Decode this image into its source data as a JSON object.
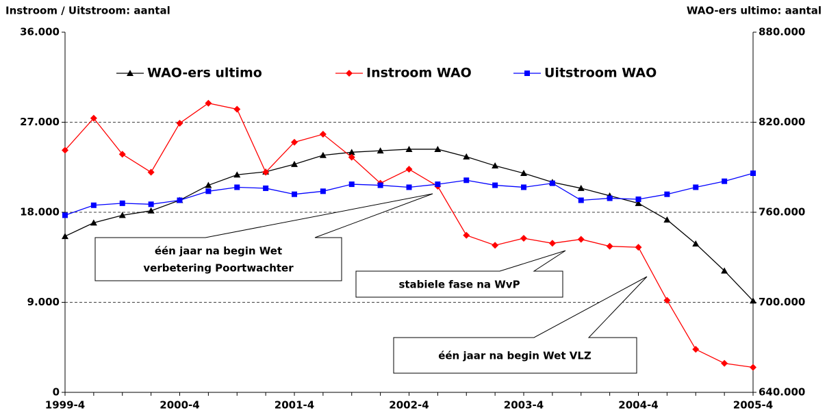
{
  "chart_data": {
    "type": "line",
    "y_title": "Instroom / Uitstroom: aantal",
    "y2_title": "WAO-ers ultimo: aantal",
    "categories": [
      "1999-4",
      null,
      null,
      null,
      "2000-4",
      null,
      null,
      null,
      "2001-4",
      null,
      null,
      null,
      "2002-4",
      null,
      null,
      null,
      "2003-4",
      null,
      null,
      null,
      "2004-4",
      null,
      null,
      null,
      "2005-4"
    ],
    "series": [
      {
        "name": "WAO-ers ultimo",
        "color": "#000000",
        "marker": "triangle",
        "axis": "y2",
        "values": [
          744000,
          753000,
          758000,
          761000,
          768000,
          778000,
          785000,
          787000,
          792000,
          798000,
          800000,
          801000,
          802000,
          802000,
          797000,
          791000,
          786000,
          780000,
          776000,
          771000,
          766000,
          755000,
          739000,
          721000,
          701000
        ]
      },
      {
        "name": "Instroom WAO",
        "color": "#ff0000",
        "marker": "diamond",
        "values": [
          24200,
          27400,
          23800,
          22000,
          26900,
          28900,
          28300,
          22000,
          25000,
          25800,
          23500,
          20900,
          22300,
          20600,
          15700,
          14700,
          15400,
          14900,
          15300,
          14600,
          14500,
          9200,
          4300,
          2900,
          2500
        ]
      },
      {
        "name": "Uitstroom WAO",
        "color": "#0000ff",
        "marker": "square",
        "values": [
          17700,
          18700,
          18900,
          18800,
          19200,
          20100,
          20500,
          20400,
          19800,
          20100,
          20800,
          20700,
          20500,
          20800,
          21200,
          20700,
          20500,
          20900,
          19200,
          19400,
          19300,
          19800,
          20500,
          21100,
          21900
        ]
      }
    ],
    "ylim": [
      0,
      36000
    ],
    "yticks": [
      0,
      {
        "value": 9000,
        "label": "9.000"
      },
      {
        "value": 18000,
        "label": "18.000"
      },
      {
        "value": 27000,
        "label": "27.000"
      },
      {
        "value": 36000,
        "label": "36.000"
      }
    ],
    "y2lim": [
      640000,
      880000
    ],
    "y2ticks": [
      {
        "value": 640000,
        "label": "640.000"
      },
      {
        "value": 700000,
        "label": "700.000"
      },
      {
        "value": 760000,
        "label": "760.000"
      },
      {
        "value": 820000,
        "label": "820.000"
      },
      {
        "value": 880000,
        "label": "880.000"
      }
    ],
    "grid": true,
    "legend": "top",
    "annotations": [
      {
        "lines": [
          "één jaar na begin Wet",
          "verbetering Poortwachter"
        ]
      },
      {
        "lines": [
          "stabiele fase na WvP"
        ]
      },
      {
        "lines": [
          "één jaar na begin Wet VLZ"
        ]
      }
    ]
  }
}
